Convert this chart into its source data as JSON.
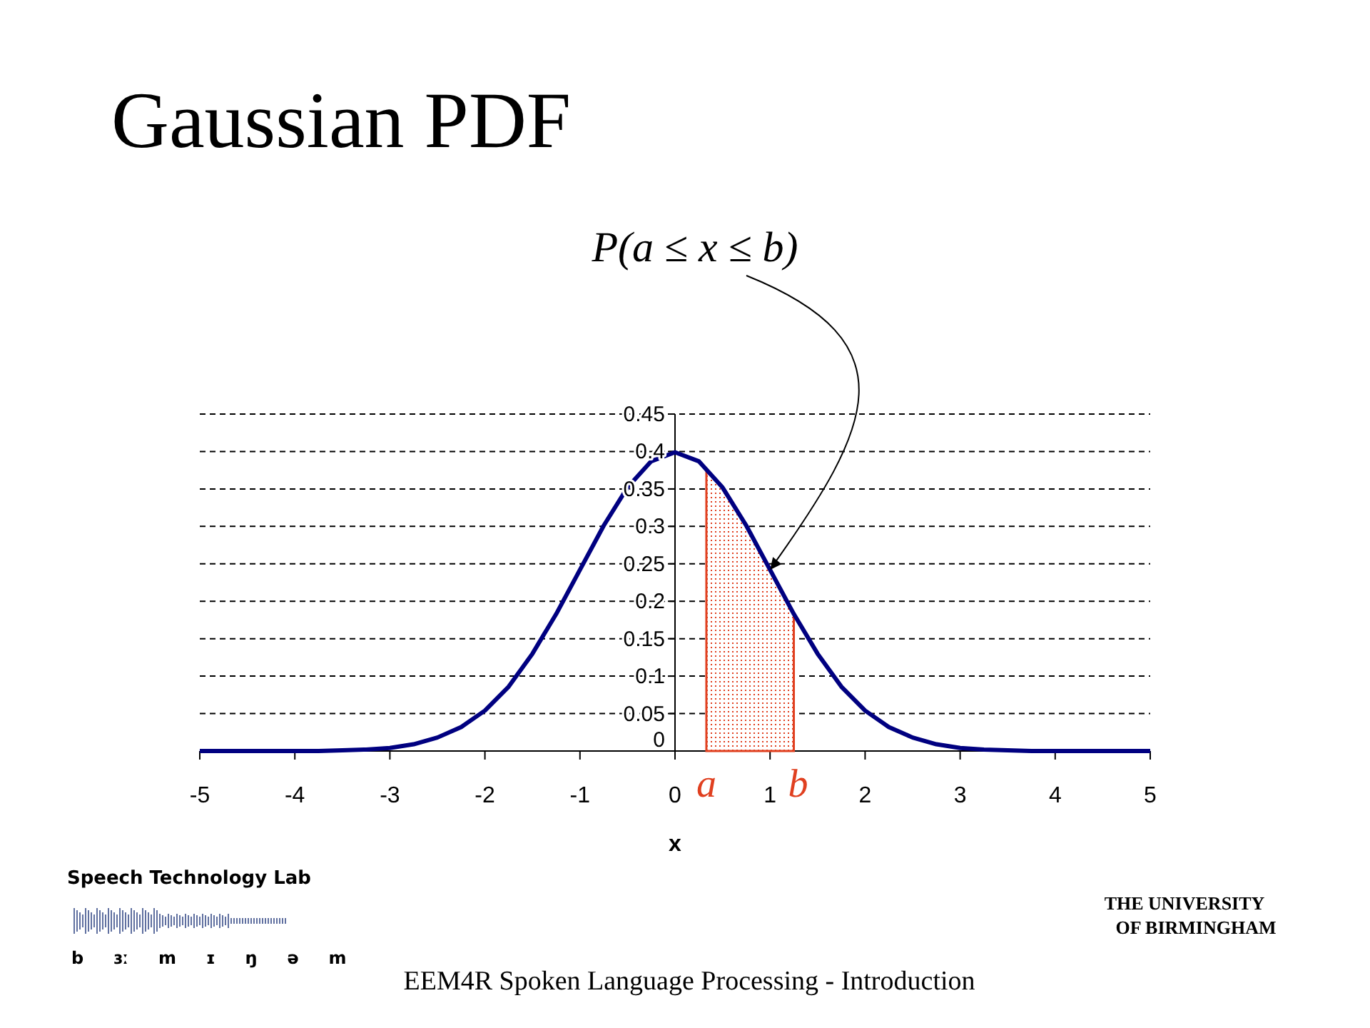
{
  "chart_data": {
    "type": "line",
    "title": "Gaussian PDF",
    "xlabel": "x",
    "x": [
      -5,
      -4.75,
      -4.5,
      -4.25,
      -4,
      -3.75,
      -3.5,
      -3.25,
      -3,
      -2.75,
      -2.5,
      -2.25,
      -2,
      -1.75,
      -1.5,
      -1.25,
      -1,
      -0.75,
      -0.5,
      -0.25,
      0,
      0.25,
      0.5,
      0.75,
      1,
      1.25,
      1.5,
      1.75,
      2,
      2.25,
      2.5,
      2.75,
      3,
      3.25,
      3.5,
      3.75,
      4,
      4.25,
      4.5,
      4.75,
      5
    ],
    "series": [
      {
        "color": "#000080",
        "values": [
          0,
          0,
          0,
          0,
          0,
          0,
          0.001,
          0.002,
          0.004,
          0.009,
          0.018,
          0.032,
          0.054,
          0.086,
          0.13,
          0.183,
          0.242,
          0.301,
          0.352,
          0.387,
          0.399,
          0.387,
          0.352,
          0.301,
          0.242,
          0.183,
          0.13,
          0.086,
          0.054,
          0.032,
          0.018,
          0.009,
          0.004,
          0.002,
          0.001,
          0,
          0,
          0,
          0,
          0,
          0
        ]
      },
      {
        "type": "area",
        "color": "#e04020",
        "x": [
          0.33,
          0.5,
          0.75,
          1,
          1.25
        ],
        "values": [
          0.377,
          0.352,
          0.301,
          0.242,
          0.183
        ]
      }
    ],
    "xlim": [
      -5,
      5
    ],
    "xticks": [
      -5,
      -4,
      -3,
      -2,
      -1,
      0,
      1,
      2,
      3,
      4,
      5
    ],
    "ylim": [
      0,
      0.45
    ],
    "yticks": [
      0,
      0.05,
      0.1,
      0.15,
      0.2,
      0.25,
      0.3,
      0.35,
      0.4,
      0.45
    ],
    "grid": "y",
    "marker": "none",
    "line_style": "solid",
    "annotations": [
      {
        "text": "P(a ≤ x ≤ b)",
        "x": 1,
        "y": 0.242
      },
      {
        "text": "a",
        "x": 0.33,
        "y": 0
      },
      {
        "text": "b",
        "x": 1.25,
        "y": 0
      },
      "Speech Technology Lab",
      "b ɜː m ɪ ŋ ə m",
      "THE UNIVERSITY OF BIRMINGHAM",
      "EEM4R Spoken Language Processing - Introduction"
    ]
  }
}
